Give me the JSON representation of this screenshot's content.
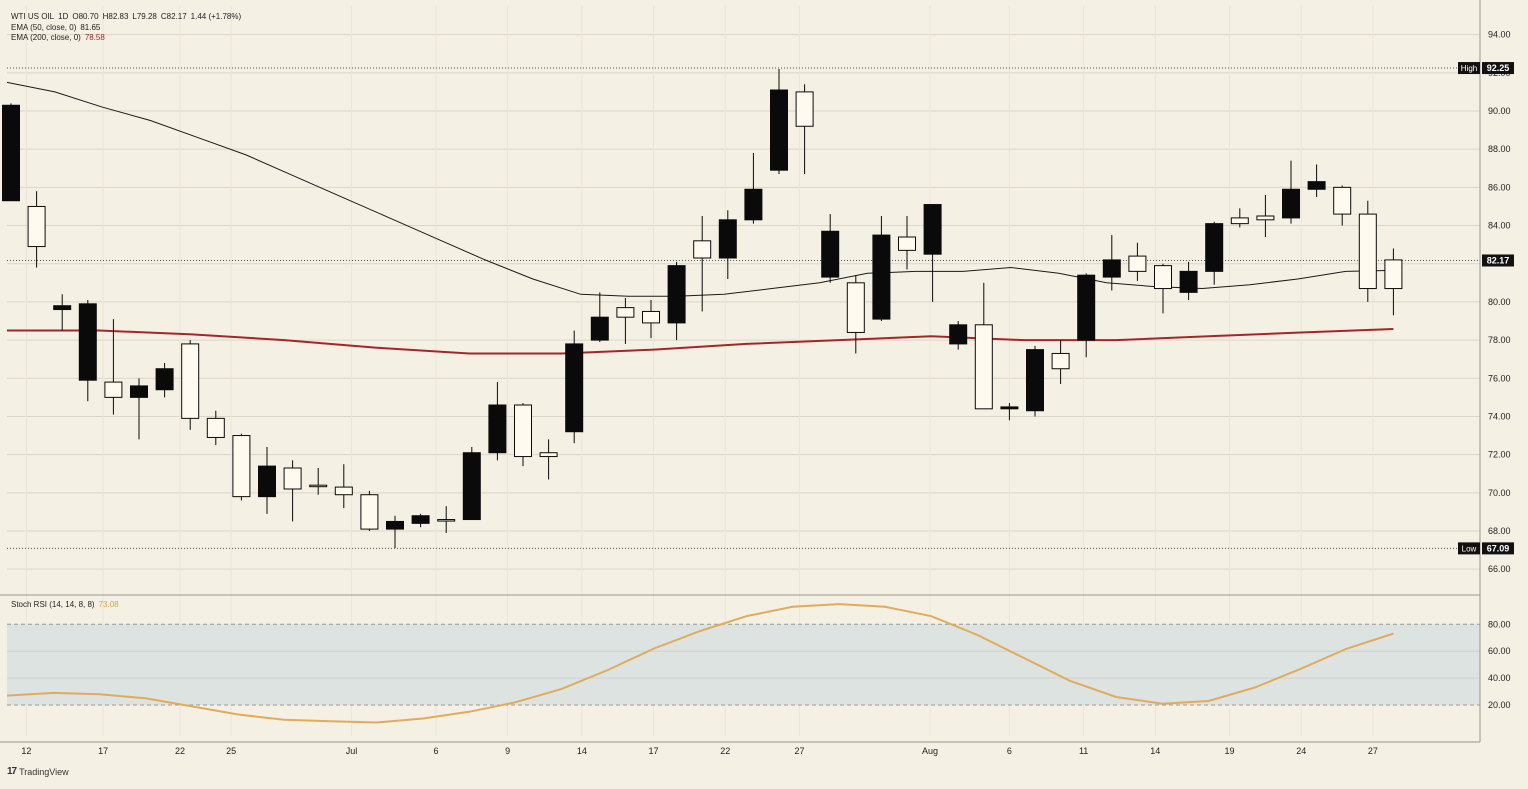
{
  "header": {
    "symbol": "WTI US OIL",
    "interval": "1D",
    "open": "O80.70",
    "high": "H82.83",
    "low": "L79.28",
    "close": "C82.17",
    "change": "1.44 (+1.78%)",
    "ema50_label": "EMA (50, close, 0)",
    "ema50_value": "81.65",
    "ema200_label": "EMA (200, close, 0)",
    "ema200_value": "78.58"
  },
  "indicator": {
    "label": "Stoch RSI (14, 14, 8, 8)",
    "value": "73.08"
  },
  "markers": {
    "high_label": "High",
    "high_value": "92.25",
    "low_label": "Low",
    "low_value": "67.09",
    "last_value": "82.17"
  },
  "brand": {
    "logo": "17",
    "name": "TradingView"
  },
  "colors": {
    "background": "#f5f0e4",
    "candle_up_fill": "#fffaf0",
    "candle_down_fill": "#0a0a0a",
    "ema50": "#1a1a1a",
    "ema200": "#a3262a",
    "stoch": "#e0ac5c",
    "stoch_band": "#dde3e1"
  },
  "chart_data": [
    {
      "type": "candlestick",
      "x_tick_labels": [
        "12",
        "17",
        "22",
        "25",
        "Jul",
        "6",
        "9",
        "14",
        "17",
        "22",
        "27",
        "Aug",
        "6",
        "11",
        "14",
        "19",
        "24",
        "27"
      ],
      "y_tick_labels": [
        "94.00",
        "92.00",
        "90.00",
        "88.00",
        "86.00",
        "84.00",
        "82.00",
        "80.00",
        "78.00",
        "76.00",
        "74.00",
        "72.00",
        "70.00",
        "68.00",
        "66.00"
      ],
      "ylim": [
        64.7,
        95.5
      ],
      "grid": true,
      "candles": [
        {
          "o": 90.3,
          "h": 90.4,
          "l": 85.3,
          "c": 85.3
        },
        {
          "o": 82.9,
          "h": 85.8,
          "l": 81.8,
          "c": 85.0
        },
        {
          "o": 79.8,
          "h": 80.4,
          "l": 78.5,
          "c": 79.6
        },
        {
          "o": 79.9,
          "h": 80.1,
          "l": 74.8,
          "c": 75.9
        },
        {
          "o": 75.0,
          "h": 79.1,
          "l": 74.1,
          "c": 75.8
        },
        {
          "o": 75.6,
          "h": 76.0,
          "l": 72.8,
          "c": 75.0
        },
        {
          "o": 76.5,
          "h": 76.8,
          "l": 75.0,
          "c": 75.4
        },
        {
          "o": 73.9,
          "h": 78.0,
          "l": 73.3,
          "c": 77.8
        },
        {
          "o": 72.9,
          "h": 74.3,
          "l": 72.5,
          "c": 73.9
        },
        {
          "o": 69.8,
          "h": 73.1,
          "l": 69.6,
          "c": 73.0
        },
        {
          "o": 71.4,
          "h": 72.4,
          "l": 68.9,
          "c": 69.8
        },
        {
          "o": 70.2,
          "h": 71.7,
          "l": 68.5,
          "c": 71.3
        },
        {
          "o": 70.4,
          "h": 71.3,
          "l": 69.9,
          "c": 70.4
        },
        {
          "o": 69.9,
          "h": 71.5,
          "l": 69.2,
          "c": 70.3
        },
        {
          "o": 68.1,
          "h": 70.1,
          "l": 68.0,
          "c": 69.9
        },
        {
          "o": 68.5,
          "h": 68.8,
          "l": 67.1,
          "c": 68.1
        },
        {
          "o": 68.8,
          "h": 68.9,
          "l": 68.2,
          "c": 68.4
        },
        {
          "o": 68.6,
          "h": 69.3,
          "l": 67.9,
          "c": 68.6
        },
        {
          "o": 72.1,
          "h": 72.4,
          "l": 68.6,
          "c": 68.6
        },
        {
          "o": 74.6,
          "h": 75.8,
          "l": 71.7,
          "c": 72.1
        },
        {
          "o": 71.9,
          "h": 74.7,
          "l": 71.4,
          "c": 74.6
        },
        {
          "o": 71.9,
          "h": 72.8,
          "l": 70.7,
          "c": 72.1
        },
        {
          "o": 77.8,
          "h": 78.5,
          "l": 72.6,
          "c": 73.2
        },
        {
          "o": 79.2,
          "h": 80.5,
          "l": 77.9,
          "c": 78.0
        },
        {
          "o": 79.2,
          "h": 80.2,
          "l": 77.8,
          "c": 79.7
        },
        {
          "o": 78.9,
          "h": 80.1,
          "l": 78.1,
          "c": 79.5
        },
        {
          "o": 81.9,
          "h": 82.1,
          "l": 78.0,
          "c": 78.9
        },
        {
          "o": 82.3,
          "h": 84.5,
          "l": 79.5,
          "c": 83.2
        },
        {
          "o": 84.3,
          "h": 84.8,
          "l": 81.2,
          "c": 82.3
        },
        {
          "o": 85.9,
          "h": 87.8,
          "l": 84.1,
          "c": 84.3
        },
        {
          "o": 91.1,
          "h": 92.2,
          "l": 86.7,
          "c": 86.9
        },
        {
          "o": 89.2,
          "h": 91.4,
          "l": 86.7,
          "c": 91.0
        },
        {
          "o": 83.7,
          "h": 84.6,
          "l": 81.0,
          "c": 81.3
        },
        {
          "o": 78.4,
          "h": 81.4,
          "l": 77.3,
          "c": 81.0
        },
        {
          "o": 83.5,
          "h": 84.5,
          "l": 79.0,
          "c": 79.1
        },
        {
          "o": 82.7,
          "h": 84.5,
          "l": 81.7,
          "c": 83.4
        },
        {
          "o": 85.1,
          "h": 85.1,
          "l": 80.0,
          "c": 82.5
        },
        {
          "o": 78.8,
          "h": 79.0,
          "l": 77.5,
          "c": 77.8
        },
        {
          "o": 74.4,
          "h": 81.0,
          "l": 74.4,
          "c": 78.8
        },
        {
          "o": 74.5,
          "h": 74.7,
          "l": 73.8,
          "c": 74.4
        },
        {
          "o": 77.5,
          "h": 77.7,
          "l": 74.0,
          "c": 74.3
        },
        {
          "o": 76.5,
          "h": 78.0,
          "l": 75.7,
          "c": 77.3
        },
        {
          "o": 81.4,
          "h": 81.5,
          "l": 77.1,
          "c": 78.0
        },
        {
          "o": 82.2,
          "h": 83.5,
          "l": 80.6,
          "c": 81.3
        },
        {
          "o": 81.6,
          "h": 83.1,
          "l": 81.1,
          "c": 82.4
        },
        {
          "o": 80.7,
          "h": 82.0,
          "l": 79.4,
          "c": 81.9
        },
        {
          "o": 81.6,
          "h": 82.1,
          "l": 80.1,
          "c": 80.5
        },
        {
          "o": 84.1,
          "h": 84.2,
          "l": 80.9,
          "c": 81.6
        },
        {
          "o": 84.1,
          "h": 84.9,
          "l": 83.9,
          "c": 84.4
        },
        {
          "o": 84.3,
          "h": 85.6,
          "l": 83.4,
          "c": 84.5
        },
        {
          "o": 85.9,
          "h": 87.4,
          "l": 84.1,
          "c": 84.4
        },
        {
          "o": 86.3,
          "h": 87.2,
          "l": 85.5,
          "c": 85.9
        },
        {
          "o": 84.6,
          "h": 86.1,
          "l": 84.0,
          "c": 86.0
        },
        {
          "o": 80.7,
          "h": 85.3,
          "l": 80.0,
          "c": 84.6
        },
        {
          "o": 80.7,
          "h": 82.8,
          "l": 79.3,
          "c": 82.2
        }
      ],
      "ema50": [
        91.5,
        91.0,
        90.2,
        89.5,
        88.6,
        87.7,
        86.6,
        85.5,
        84.4,
        83.3,
        82.2,
        81.2,
        80.4,
        80.3,
        80.3,
        80.4,
        80.7,
        81.0,
        81.5,
        81.6,
        81.6,
        81.8,
        81.5,
        81.0,
        80.8,
        80.7,
        80.9,
        81.2,
        81.6,
        81.65
      ],
      "ema200": [
        78.5,
        78.5,
        78.3,
        78.0,
        77.6,
        77.3,
        77.3,
        77.5,
        77.8,
        78.0,
        78.2,
        78.0,
        78.0,
        78.2,
        78.4,
        78.58
      ],
      "stoch_rsi": [
        27,
        29,
        28,
        25,
        19,
        13,
        9,
        8,
        7,
        10,
        15,
        22,
        32,
        46,
        62,
        75,
        86,
        93,
        95,
        93,
        86,
        72,
        55,
        38,
        26,
        21,
        23,
        33,
        47,
        62,
        73.08
      ],
      "stoch_y_tick_labels": [
        "80.00",
        "60.00",
        "40.00",
        "20.00"
      ],
      "stoch_ylim": [
        -3,
        101
      ]
    }
  ]
}
